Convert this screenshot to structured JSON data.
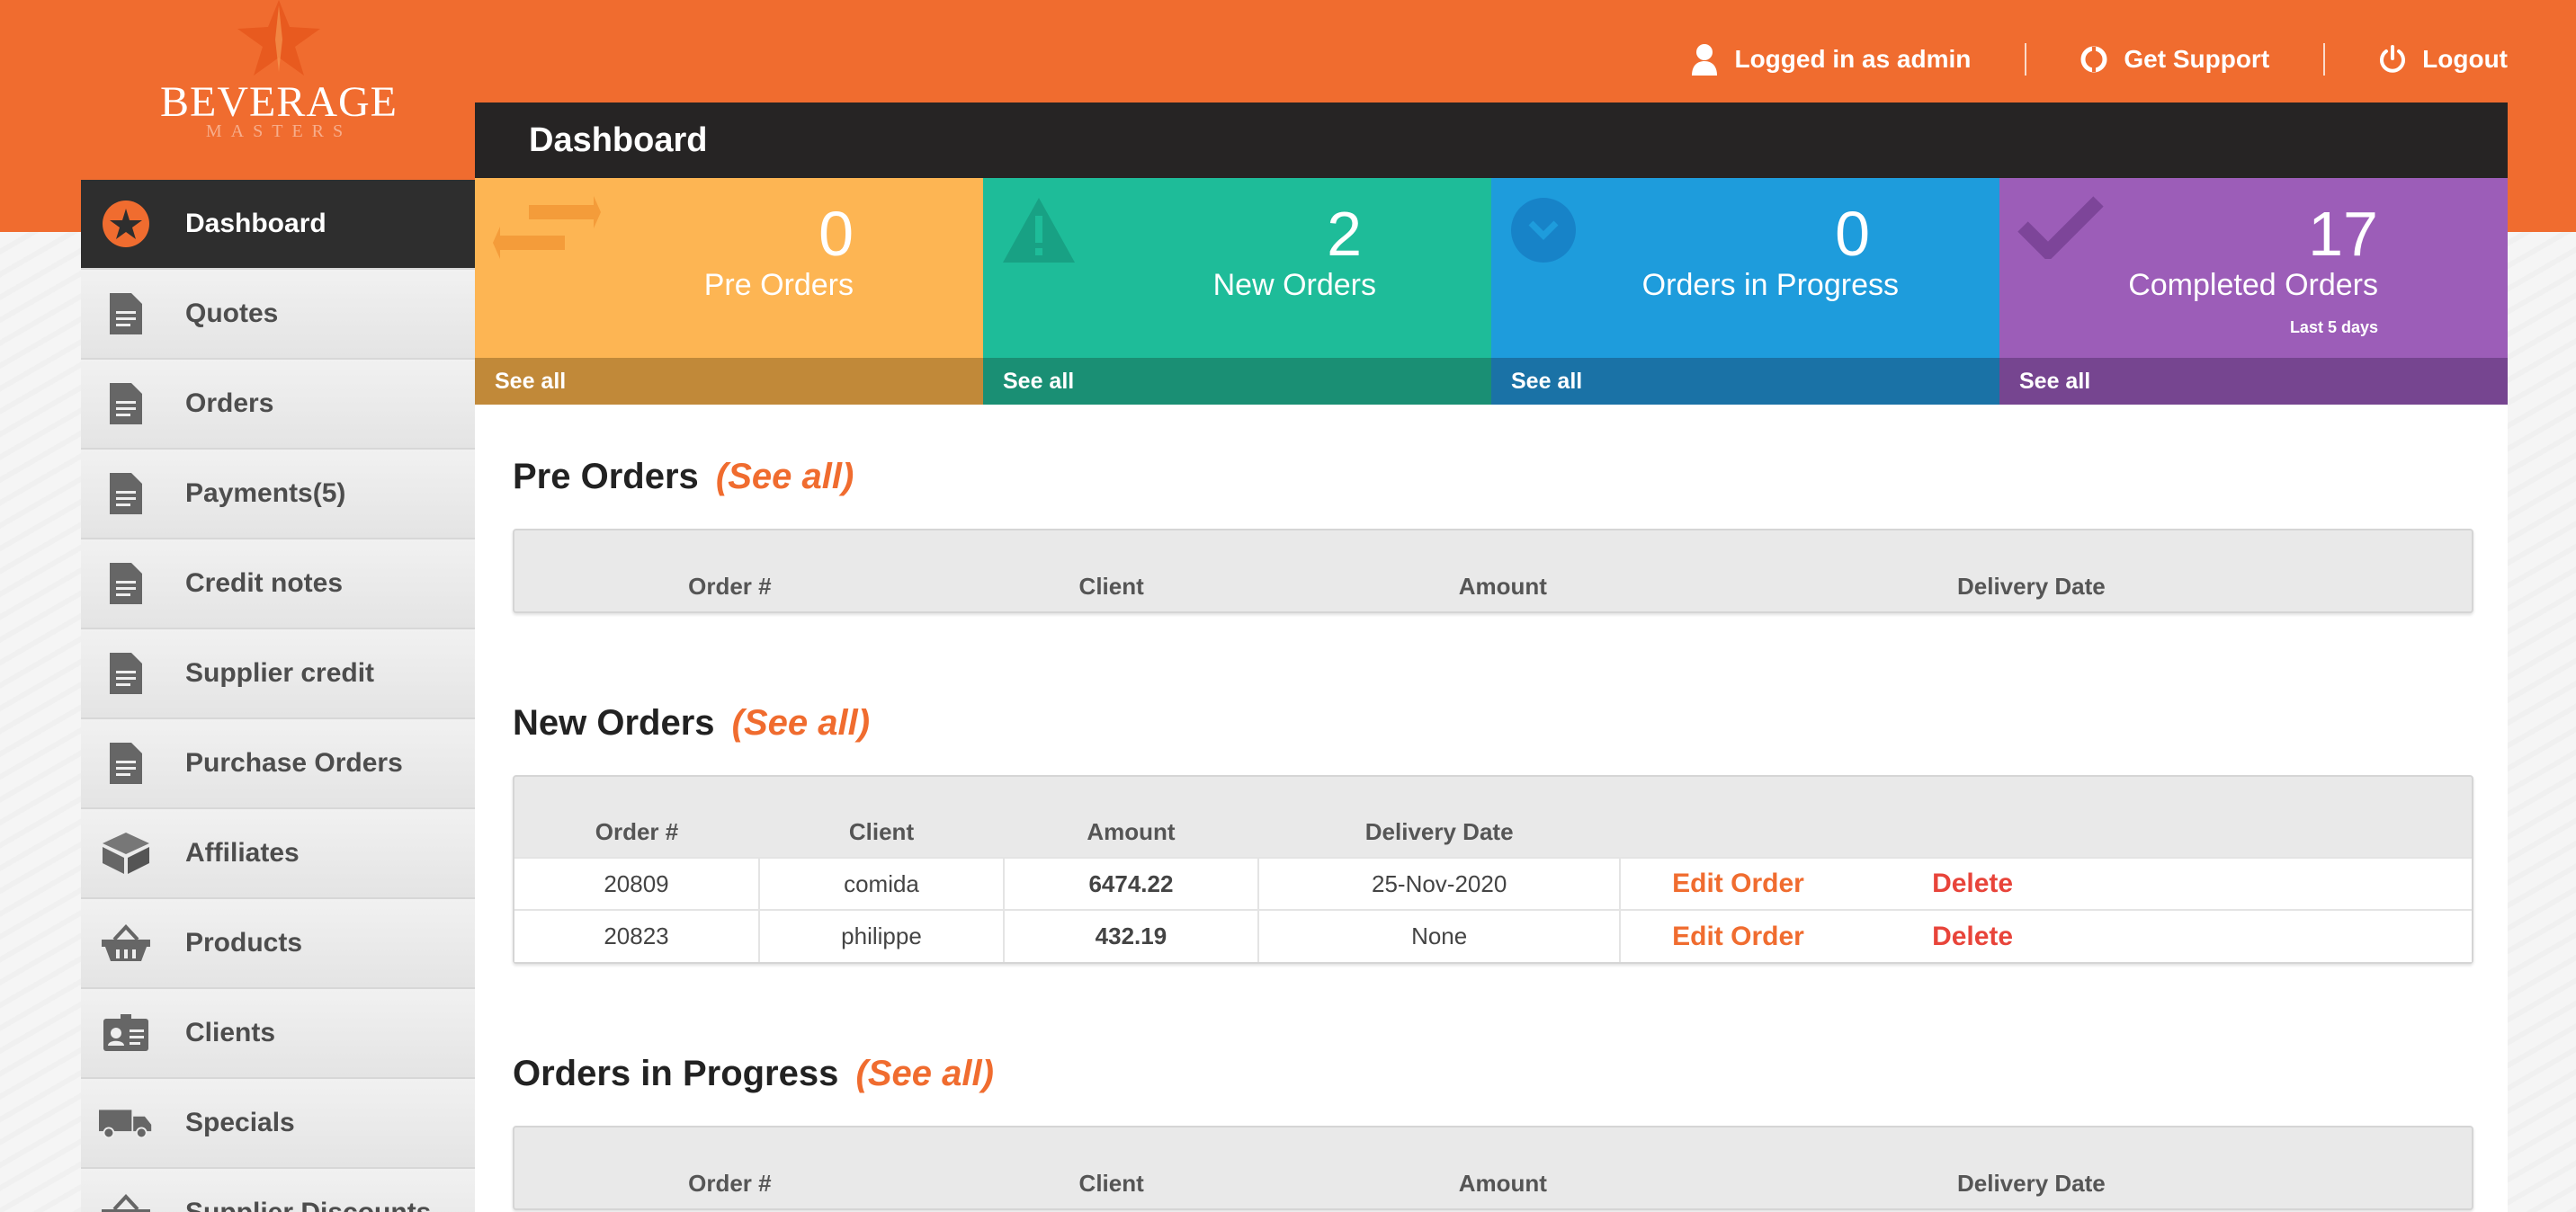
{
  "brand": {
    "name": "BEVERAGE",
    "sub": "MASTERS"
  },
  "topnav": {
    "user": "Logged in as admin",
    "support": "Get Support",
    "logout": "Logout"
  },
  "sidebar": {
    "items": [
      {
        "label": "Dashboard",
        "icon": "star-icon"
      },
      {
        "label": "Quotes",
        "icon": "document-icon"
      },
      {
        "label": "Orders",
        "icon": "document-icon"
      },
      {
        "label": "Payments(5)",
        "icon": "document-icon"
      },
      {
        "label": "Credit notes",
        "icon": "document-icon"
      },
      {
        "label": "Supplier credit",
        "icon": "document-icon"
      },
      {
        "label": "Purchase Orders",
        "icon": "document-icon"
      },
      {
        "label": "Affiliates",
        "icon": "box-icon"
      },
      {
        "label": "Products",
        "icon": "basket-icon"
      },
      {
        "label": "Clients",
        "icon": "id-card-icon"
      },
      {
        "label": "Specials",
        "icon": "truck-icon"
      },
      {
        "label": "Supplier Discounts",
        "icon": "basket-icon"
      }
    ]
  },
  "main": {
    "title": "Dashboard"
  },
  "tiles": [
    {
      "count": "0",
      "label": "Pre Orders",
      "sub": "",
      "see_all": "See all",
      "icon": "arrows-icon"
    },
    {
      "count": "2",
      "label": "New Orders",
      "sub": "",
      "see_all": "See all",
      "icon": "warning-icon"
    },
    {
      "count": "0",
      "label": "Orders in Progress",
      "sub": "",
      "see_all": "See all",
      "icon": "chevron-down-circle-icon"
    },
    {
      "count": "17",
      "label": "Completed Orders",
      "sub": "Last 5 days",
      "see_all": "See all",
      "icon": "check-icon"
    }
  ],
  "sections": {
    "pre_orders": {
      "title": "Pre Orders",
      "see_all": "(See all)",
      "columns": [
        "Order #",
        "Client",
        "Amount",
        "Delivery Date"
      ]
    },
    "new_orders": {
      "title": "New Orders",
      "see_all": "(See all)",
      "columns": [
        "Order #",
        "Client",
        "Amount",
        "Delivery Date"
      ],
      "rows": [
        {
          "order": "20809",
          "client": "comida",
          "amount": "6474.22",
          "date": "25-Nov-2020",
          "edit": "Edit Order",
          "delete": "Delete"
        },
        {
          "order": "20823",
          "client": "philippe",
          "amount": "432.19",
          "date": "None",
          "edit": "Edit Order",
          "delete": "Delete"
        }
      ]
    },
    "in_progress": {
      "title": "Orders in Progress",
      "see_all": "(See all)",
      "columns": [
        "Order #",
        "Client",
        "Amount",
        "Delivery Date"
      ]
    }
  },
  "colors": {
    "brand_orange": "#f06c2f",
    "tile_pre": "#fdb553",
    "tile_new": "#1ebc99",
    "tile_progress": "#1e9cdc",
    "tile_completed": "#9c5db8",
    "delete_red": "#e8443a"
  }
}
